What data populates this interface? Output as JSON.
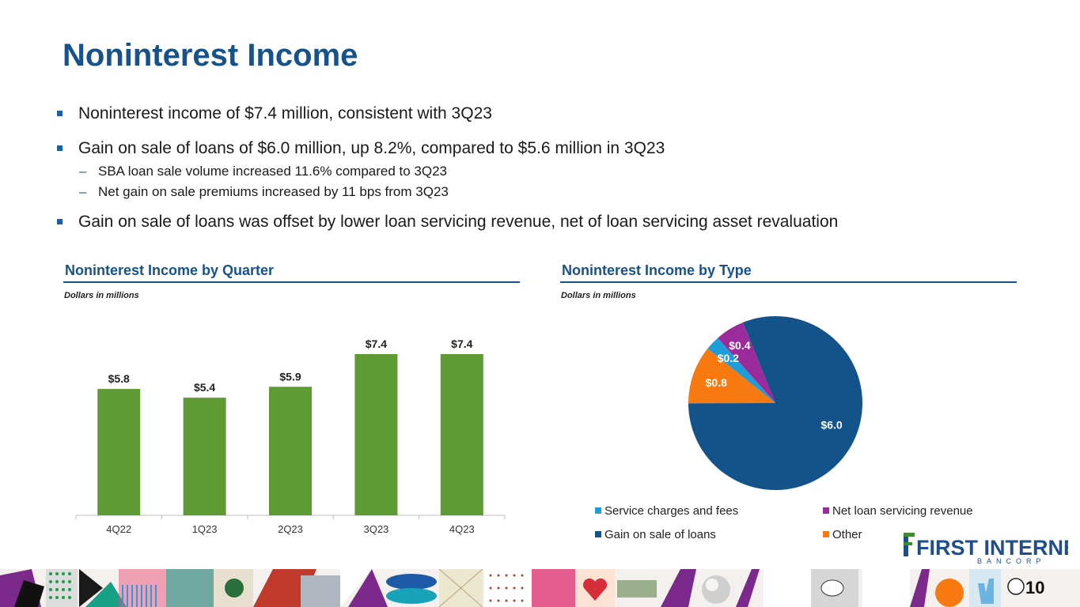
{
  "title": "Noninterest Income",
  "bullets": [
    {
      "text": "Noninterest income of $7.4 million, consistent with 3Q23",
      "subs": []
    },
    {
      "text": "Gain on sale of loans of $6.0 million, up 8.2%, compared to $5.6 million in 3Q23",
      "subs": [
        "SBA loan sale volume increased 11.6% compared to 3Q23",
        "Net gain on sale premiums increased by 11 bps from 3Q23"
      ]
    },
    {
      "text": "Gain on sale of loans was offset by lower loan servicing revenue, net of loan servicing asset revaluation",
      "subs": []
    }
  ],
  "left_section": {
    "title": "Noninterest Income by Quarter",
    "subtitle": "Dollars in millions"
  },
  "right_section": {
    "title": "Noninterest Income by Type",
    "subtitle": "Dollars in millions"
  },
  "chart_data": [
    {
      "type": "bar",
      "title": "Noninterest Income by Quarter",
      "subtitle": "Dollars in millions",
      "categories": [
        "4Q22",
        "1Q23",
        "2Q23",
        "3Q23",
        "4Q23"
      ],
      "values": [
        5.8,
        5.4,
        5.9,
        7.4,
        7.4
      ],
      "labels": [
        "$5.8",
        "$5.4",
        "$5.9",
        "$7.4",
        "$7.4"
      ],
      "ylim": [
        0,
        8
      ],
      "color": "#5f9b34"
    },
    {
      "type": "pie",
      "title": "Noninterest Income by Type",
      "subtitle": "Dollars in millions",
      "slices": [
        {
          "name": "Gain on sale of loans",
          "value": 6.0,
          "label": "$6.0",
          "color": "#14538a"
        },
        {
          "name": "Other",
          "value": 0.8,
          "label": "$0.8",
          "color": "#f7790f"
        },
        {
          "name": "Service charges and fees",
          "value": 0.2,
          "label": "$0.2",
          "color": "#1d9ed8"
        },
        {
          "name": "Net loan servicing revenue",
          "value": 0.4,
          "label": "$0.4",
          "color": "#9b2a9a"
        }
      ],
      "legend": [
        {
          "name": "Service charges and fees",
          "color": "#1d9ed8"
        },
        {
          "name": "Net loan servicing revenue",
          "color": "#9b2a9a"
        },
        {
          "name": "Gain on sale of loans",
          "color": "#14538a"
        },
        {
          "name": "Other",
          "color": "#f7790f"
        }
      ],
      "legend_position": "bottom"
    }
  ],
  "logo": {
    "name": "FIRST INTERNET",
    "tagline": "BANCORP"
  },
  "page_number": "10"
}
